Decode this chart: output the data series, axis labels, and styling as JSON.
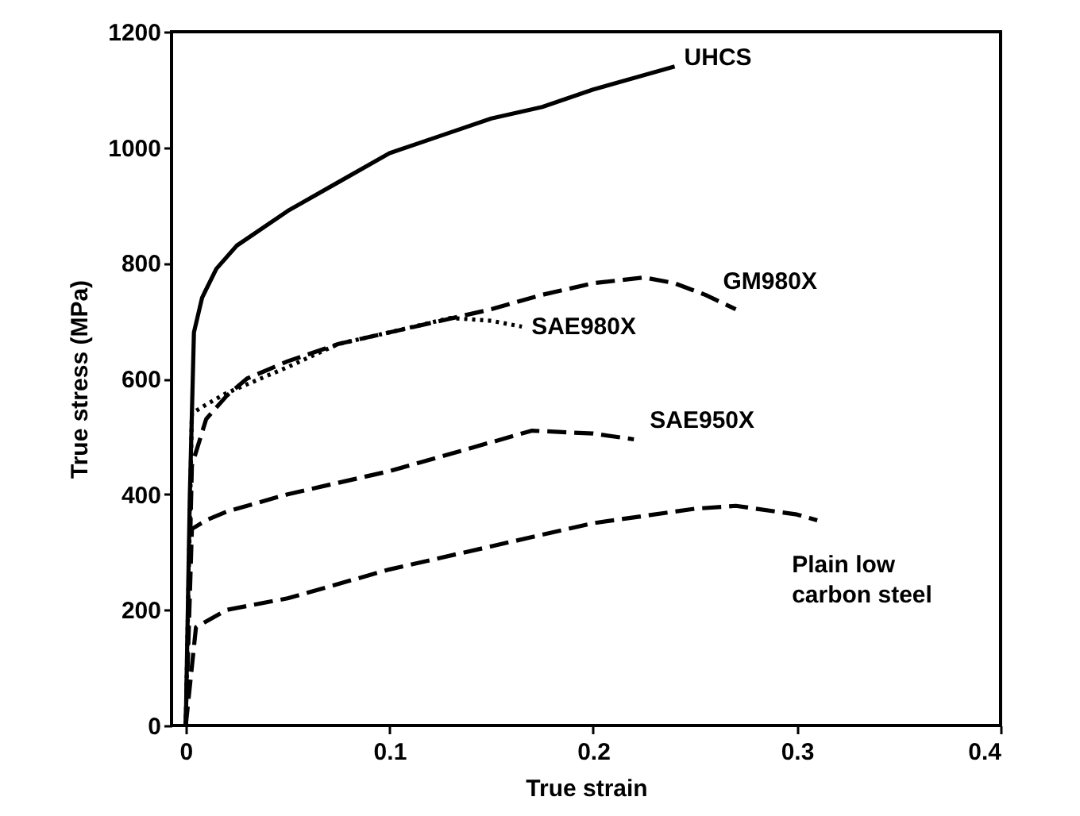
{
  "chart_data": {
    "type": "line",
    "xlabel": "True strain",
    "ylabel": "True stress (MPa)",
    "xlim": [
      -0.007,
      0.4
    ],
    "ylim": [
      0,
      1200
    ],
    "xticks": [
      0,
      0.1,
      0.2,
      0.3,
      0.4
    ],
    "yticks": [
      0,
      200,
      400,
      600,
      800,
      1000,
      1200
    ],
    "grid": false,
    "marker": "none",
    "series": [
      {
        "name": "UHCS",
        "color": "#000000",
        "line_style": "solid",
        "x": [
          0,
          0.002,
          0.004,
          0.008,
          0.015,
          0.025,
          0.05,
          0.075,
          0.1,
          0.125,
          0.15,
          0.175,
          0.2,
          0.22,
          0.24
        ],
        "values": [
          0,
          400,
          680,
          740,
          790,
          830,
          890,
          940,
          990,
          1020,
          1050,
          1070,
          1100,
          1120,
          1140
        ]
      },
      {
        "name": "GM980X",
        "color": "#000000",
        "line_style": "dashed",
        "x": [
          0,
          0.003,
          0.01,
          0.02,
          0.03,
          0.05,
          0.075,
          0.1,
          0.125,
          0.15,
          0.175,
          0.2,
          0.225,
          0.24,
          0.255,
          0.27
        ],
        "values": [
          0,
          450,
          530,
          570,
          600,
          630,
          660,
          680,
          700,
          720,
          745,
          765,
          775,
          765,
          745,
          720
        ]
      },
      {
        "name": "SAE980X",
        "color": "#000000",
        "line_style": "dotted",
        "x": [
          0,
          0.003,
          0.01,
          0.02,
          0.05,
          0.075,
          0.1,
          0.13,
          0.15,
          0.165
        ],
        "values": [
          0,
          540,
          555,
          575,
          620,
          660,
          680,
          705,
          700,
          690
        ]
      },
      {
        "name": "SAE950X",
        "color": "#000000",
        "line_style": "dashed",
        "x": [
          0,
          0.003,
          0.01,
          0.02,
          0.05,
          0.075,
          0.1,
          0.125,
          0.15,
          0.17,
          0.2,
          0.22
        ],
        "values": [
          0,
          340,
          355,
          370,
          400,
          420,
          440,
          465,
          490,
          510,
          505,
          495
        ]
      },
      {
        "name": "Plain low carbon steel",
        "color": "#000000",
        "line_style": "dashed",
        "x": [
          0,
          0.005,
          0.02,
          0.05,
          0.1,
          0.15,
          0.2,
          0.25,
          0.27,
          0.3,
          0.31
        ],
        "values": [
          0,
          170,
          200,
          220,
          270,
          310,
          350,
          375,
          380,
          365,
          355
        ]
      }
    ]
  }
}
